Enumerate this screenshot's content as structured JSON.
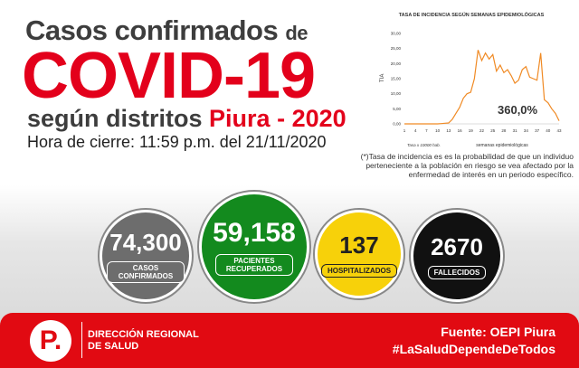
{
  "title": {
    "line1": "Casos confirmados",
    "line1_suffix": "de",
    "line2": "COVID-19",
    "line3_a": "según distritos",
    "line3_b": "Piura - 2020",
    "line4": "Hora de cierre: 11:59 p.m. del  21/11/2020"
  },
  "chart_data": {
    "type": "line",
    "title": "TASA DE INCIDENCIA SEGÚN SEMANAS EPIDEMIOLÓGICAS",
    "xlabel": "semanas epidemiológicas",
    "ylabel": "TIA",
    "ylim": [
      0,
      30
    ],
    "yticks": [
      "0,00",
      "5,00",
      "10,00",
      "15,00",
      "20,00",
      "25,00",
      "30,00"
    ],
    "xticks": [
      "1",
      "4",
      "7",
      "10",
      "13",
      "16",
      "19",
      "22",
      "25",
      "28",
      "31",
      "34",
      "37",
      "40",
      "43"
    ],
    "x": [
      1,
      2,
      3,
      4,
      5,
      6,
      7,
      8,
      9,
      10,
      11,
      12,
      13,
      14,
      15,
      16,
      17,
      18,
      19,
      20,
      21,
      22,
      23,
      24,
      25,
      26,
      27,
      28,
      29,
      30,
      31,
      32,
      33,
      34,
      35,
      36,
      37,
      38,
      39,
      40,
      41,
      42,
      43
    ],
    "values": [
      0,
      0,
      0,
      0,
      0,
      0,
      0,
      0,
      0,
      0,
      0.1,
      0.2,
      0.3,
      1.5,
      3.5,
      5.5,
      8.5,
      10,
      10.5,
      15,
      24.5,
      21,
      23.5,
      21.5,
      23,
      17.5,
      19.5,
      17,
      18,
      16,
      13.5,
      14.5,
      18,
      19,
      15.5,
      15,
      14.5,
      23.5,
      8,
      7,
      5,
      3.5,
      1
    ],
    "annotation": "360,0%",
    "footnote": "Tasa x 10000 hab.",
    "color": "#f08a24"
  },
  "note": "(*)Tasa de incidencia es es la probabilidad de que un individuo perteneciente a la población en riesgo se vea afectado por la enfermedad de interés en un periodo específico.",
  "stats": [
    {
      "value": "74,300",
      "label": "CASOS CONFIRMADOS",
      "color": "#6d6d6d"
    },
    {
      "value": "59,158",
      "label": "PACIENTES RECUPERADOS",
      "color": "#138a1e"
    },
    {
      "value": "137",
      "label": "HOSPITALIZADOS",
      "color": "#f7d10a"
    },
    {
      "value": "2670",
      "label": "FALLECIDOS",
      "color": "#111111"
    }
  ],
  "footer": {
    "logo_letter": "P.",
    "org_line1": "DIRECCIÓN REGIONAL",
    "org_line2": "DE SALUD",
    "source": "Fuente: OEPI Piura",
    "hashtag": "#LaSaludDependeDeTodos"
  }
}
